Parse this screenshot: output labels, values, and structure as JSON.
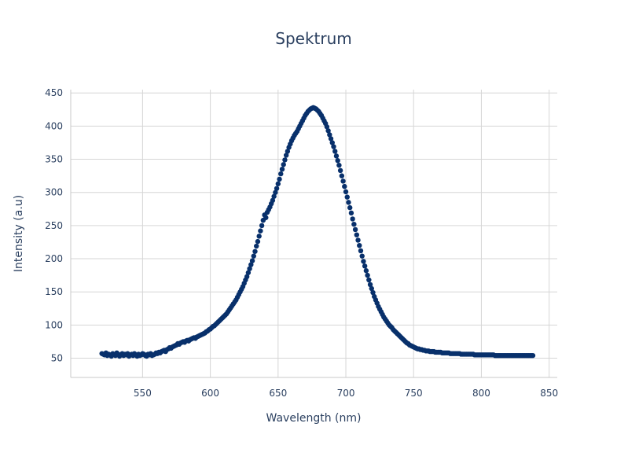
{
  "chart_data": {
    "type": "scatter",
    "title": "Spektrum",
    "xlabel": "Wavelength (nm)",
    "ylabel": "Intensity (a.u)",
    "xlim": [
      497,
      856
    ],
    "ylim": [
      21,
      455
    ],
    "xticks": [
      550,
      600,
      650,
      700,
      750,
      800,
      850
    ],
    "yticks": [
      50,
      100,
      150,
      200,
      250,
      300,
      350,
      400,
      450
    ],
    "grid": true,
    "legend": "none",
    "marker_color": "#08306b",
    "series": [
      {
        "name": "Spektrum",
        "x_start": 520,
        "x_end": 838,
        "x_step": 1,
        "y": [
          57,
          56,
          55,
          58,
          54,
          56,
          55,
          53,
          57,
          55,
          54,
          58,
          56,
          53,
          55,
          57,
          54,
          56,
          55,
          57,
          53,
          55,
          56,
          54,
          57,
          55,
          53,
          56,
          54,
          55,
          57,
          56,
          54,
          53,
          56,
          55,
          57,
          54,
          55,
          56,
          58,
          57,
          59,
          58,
          60,
          61,
          62,
          60,
          63,
          64,
          66,
          65,
          67,
          68,
          69,
          70,
          72,
          71,
          73,
          74,
          75,
          74,
          76,
          77,
          76,
          78,
          79,
          80,
          81,
          80,
          82,
          83,
          84,
          85,
          86,
          87,
          88,
          90,
          91,
          93,
          94,
          96,
          98,
          99,
          101,
          103,
          105,
          107,
          109,
          111,
          113,
          115,
          117,
          120,
          123,
          126,
          129,
          132,
          135,
          138,
          142,
          146,
          150,
          154,
          158,
          163,
          168,
          173,
          179,
          185,
          191,
          197,
          204,
          211,
          219,
          226,
          234,
          242,
          250,
          258,
          266,
          262,
          270,
          274,
          278,
          283,
          288,
          294,
          300,
          306,
          313,
          320,
          328,
          335,
          342,
          349,
          356,
          362,
          368,
          373,
          378,
          382,
          386,
          389,
          392,
          396,
          400,
          404,
          408,
          412,
          416,
          419,
          422,
          424,
          426,
          427,
          428,
          427,
          426,
          424,
          422,
          419,
          416,
          412,
          408,
          404,
          399,
          393,
          387,
          381,
          375,
          369,
          362,
          355,
          348,
          341,
          333,
          325,
          317,
          309,
          301,
          293,
          285,
          277,
          269,
          260,
          252,
          244,
          236,
          228,
          220,
          212,
          204,
          196,
          189,
          182,
          175,
          168,
          161,
          155,
          149,
          143,
          138,
          133,
          128,
          124,
          120,
          116,
          112,
          109,
          106,
          103,
          100,
          98,
          96,
          93,
          91,
          89,
          87,
          85,
          83,
          81,
          79,
          77,
          75,
          73,
          72,
          70,
          69,
          68,
          67,
          66,
          65,
          64,
          64,
          63,
          63,
          62,
          62,
          61,
          61,
          61,
          60,
          60,
          60,
          60,
          59,
          59,
          59,
          59,
          59,
          58,
          58,
          58,
          58,
          58,
          58,
          57,
          57,
          57,
          57,
          57,
          57,
          57,
          57,
          56,
          56,
          56,
          56,
          56,
          56,
          56,
          56,
          56,
          56,
          55,
          55,
          55,
          55,
          55,
          55,
          55,
          55,
          55,
          55,
          55,
          55,
          55,
          55,
          55,
          54,
          54,
          54,
          54,
          54,
          54,
          54,
          54,
          54,
          54,
          54,
          54,
          54,
          54,
          54,
          54,
          54,
          54,
          54,
          54,
          54,
          54,
          54,
          54,
          54,
          54,
          54,
          54,
          54
        ]
      }
    ]
  }
}
